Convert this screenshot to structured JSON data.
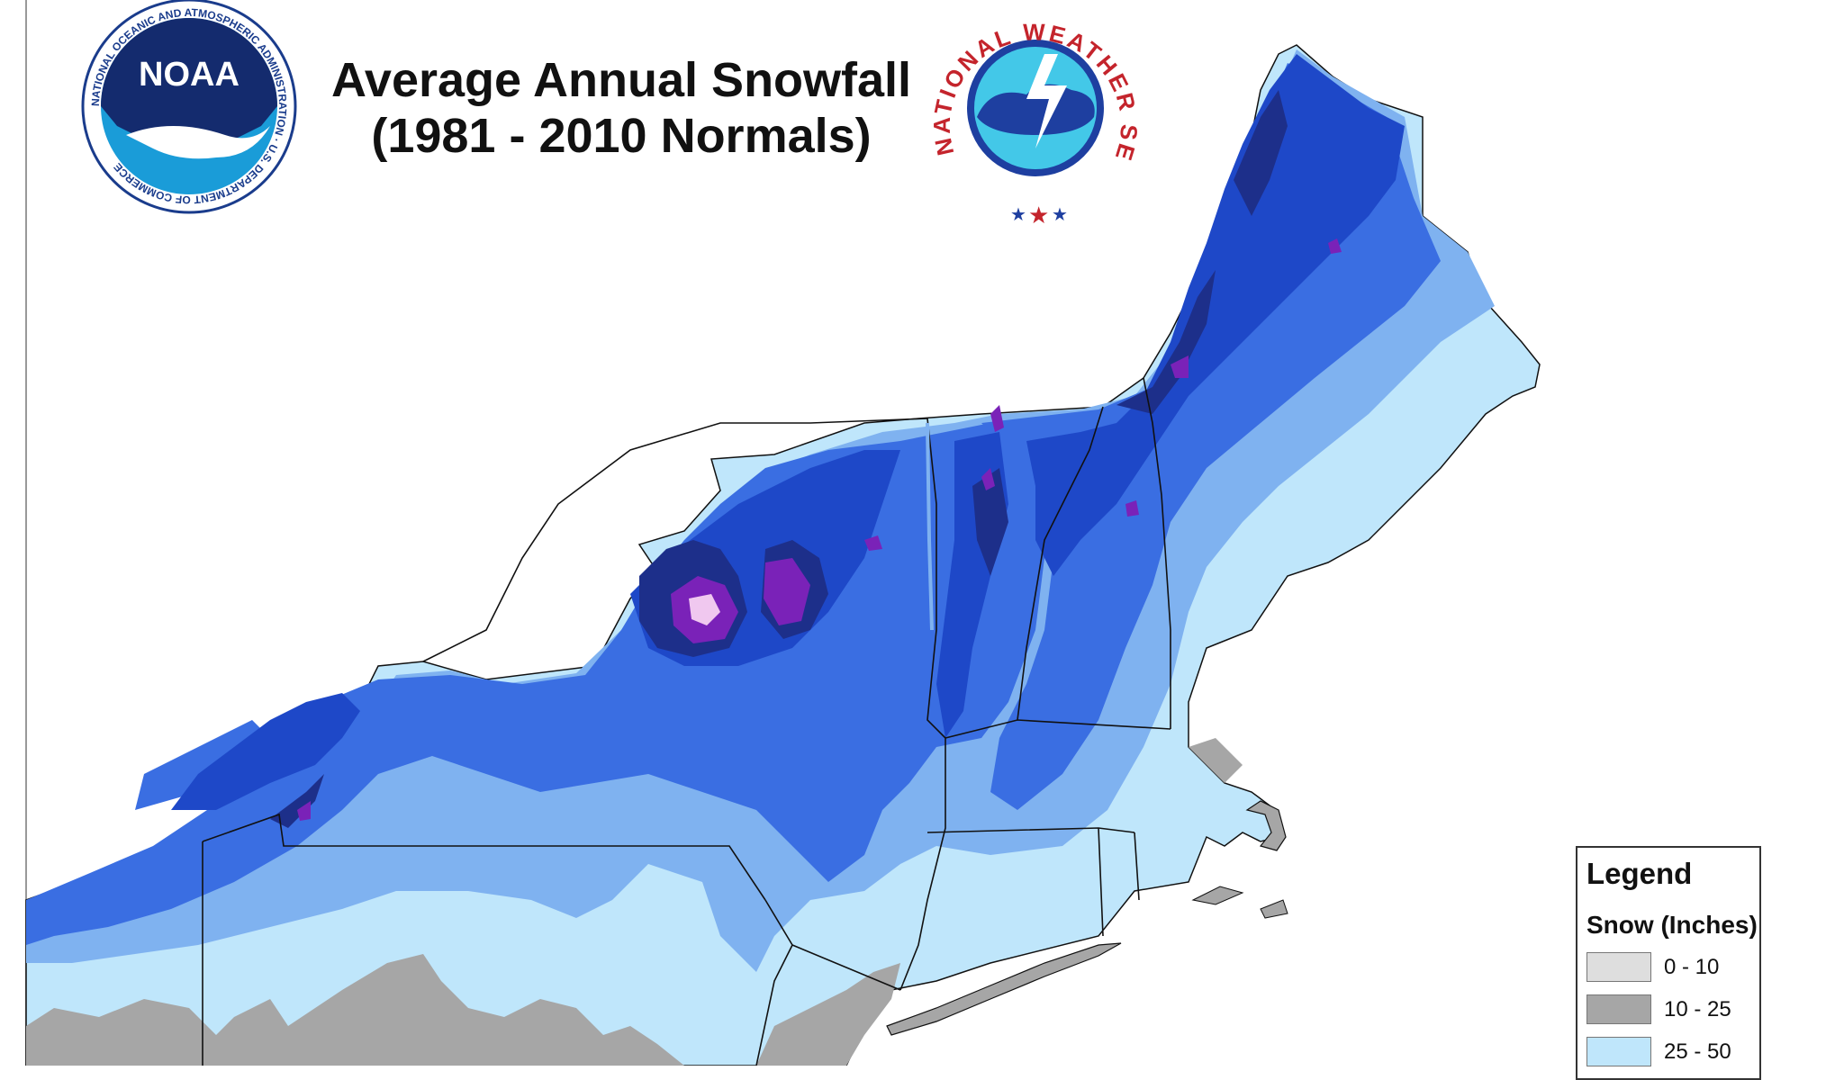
{
  "title": {
    "line1": "Average Annual Snowfall",
    "line2": "(1981 - 2010 Normals)"
  },
  "noaa_logo": {
    "center_text": "NOAA",
    "ring_text": "NATIONAL OCEANIC AND ATMOSPHERIC ADMINISTRATION · U.S. DEPARTMENT OF COMMERCE"
  },
  "nws_logo": {
    "ring_text": "NATIONAL WEATHER SERVICE"
  },
  "legend": {
    "title": "Legend",
    "subtitle": "Snow (Inches)",
    "items": [
      {
        "label": "0 - 10",
        "color": "#dedede"
      },
      {
        "label": "10 - 25",
        "color": "#a6a6a6"
      },
      {
        "label": "25 - 50",
        "color": "#bfe6fb"
      }
    ]
  },
  "colors": {
    "c10_25": "#a6a6a6",
    "c25_50": "#bfe6fb",
    "c50_75": "#7fb2f0",
    "c75_100": "#3a6ee2",
    "c100_150": "#1e48c8",
    "c150_200": "#1d2f8a",
    "c200_250": "#7a22b8",
    "c250_300": "#f0c8ef"
  }
}
